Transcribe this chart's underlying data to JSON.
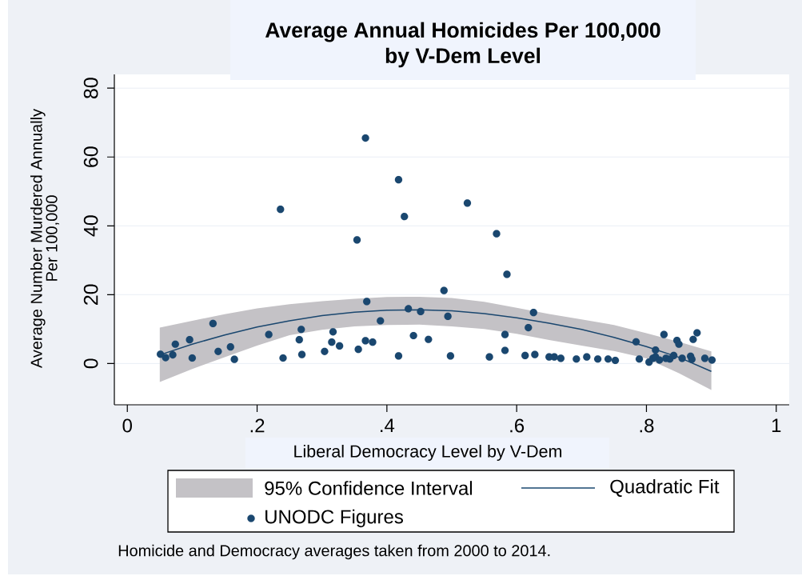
{
  "chart_data": {
    "type": "scatter",
    "title": "Average Annual Homicides Per 100,000 by V-Dem Level",
    "xlabel": "Liberal Democracy Level by V-Dem",
    "ylabel": "Average Number Murdered Annually Per 100,000",
    "xlim": [
      -0.02,
      1.02
    ],
    "ylim": [
      -12,
      84
    ],
    "xticks": [
      0,
      {
        "value": 0.2,
        "label": ".2"
      },
      {
        "value": 0.4,
        "label": ".4"
      },
      {
        "value": 0.6,
        "label": ".6"
      },
      {
        "value": 0.8,
        "label": ".8"
      },
      1
    ],
    "yticks": [
      0,
      20,
      40,
      60,
      80
    ],
    "grid": "y",
    "legend": "bottom",
    "annotations": [
      "95% Confidence Interval",
      "Homicide and Democracy averages taken from 2000 to 2014."
    ],
    "series": [
      {
        "name": "Quadratic Fit",
        "type": "line",
        "color": "#1a476f",
        "x": [
          0.05,
          0.1,
          0.15,
          0.2,
          0.25,
          0.3,
          0.35,
          0.4,
          0.45,
          0.5,
          0.55,
          0.6,
          0.65,
          0.7,
          0.75,
          0.8,
          0.85,
          0.9
        ],
        "values": [
          2.5,
          5.6,
          8.3,
          10.6,
          12.4,
          13.9,
          14.9,
          15.5,
          15.6,
          15.3,
          14.5,
          13.3,
          11.7,
          9.9,
          7.6,
          4.9,
          1.8,
          -2.3
        ],
        "lower": [
          -5.4,
          -1.6,
          1.8,
          5.2,
          8.2,
          9.8,
          10.8,
          11.2,
          11.3,
          10.8,
          10.0,
          8.6,
          6.8,
          5.2,
          3.6,
          1.5,
          -2.8,
          -7.7
        ],
        "upper": [
          10.4,
          12.4,
          14.3,
          16.0,
          17.2,
          18.1,
          18.8,
          19.3,
          19.4,
          19.0,
          17.9,
          16.2,
          14.4,
          12.8,
          11.2,
          8.8,
          6.3,
          3.5
        ]
      },
      {
        "name": "UNODC Figures",
        "color": "#1a476f",
        "marker": "circle",
        "x": [
          0.051,
          0.059,
          0.07,
          0.074,
          0.096,
          0.1,
          0.132,
          0.14,
          0.159,
          0.165,
          0.218,
          0.236,
          0.24,
          0.265,
          0.268,
          0.269,
          0.304,
          0.315,
          0.317,
          0.327,
          0.354,
          0.356,
          0.367,
          0.367,
          0.369,
          0.378,
          0.39,
          0.418,
          0.418,
          0.427,
          0.433,
          0.441,
          0.452,
          0.464,
          0.488,
          0.494,
          0.498,
          0.524,
          0.558,
          0.569,
          0.582,
          0.582,
          0.585,
          0.613,
          0.618,
          0.626,
          0.628,
          0.65,
          0.658,
          0.668,
          0.692,
          0.708,
          0.725,
          0.741,
          0.752,
          0.784,
          0.789,
          0.804,
          0.81,
          0.814,
          0.814,
          0.82,
          0.827,
          0.83,
          0.836,
          0.842,
          0.847,
          0.85,
          0.855,
          0.868,
          0.87,
          0.872,
          0.878,
          0.89,
          0.901
        ],
        "values": [
          2.7,
          1.7,
          2.5,
          5.6,
          6.9,
          1.6,
          11.6,
          3.5,
          4.8,
          1.2,
          8.4,
          44.8,
          1.6,
          6.9,
          9.9,
          2.6,
          3.5,
          6.2,
          9.2,
          5.1,
          35.9,
          4.1,
          65.5,
          6.6,
          18.0,
          6.2,
          12.4,
          53.4,
          2.2,
          42.7,
          15.9,
          8.1,
          15.1,
          7.0,
          21.2,
          13.7,
          2.2,
          46.6,
          1.9,
          37.7,
          8.4,
          3.8,
          25.9,
          2.3,
          10.4,
          14.8,
          2.6,
          1.9,
          1.9,
          1.5,
          1.3,
          1.9,
          1.3,
          1.3,
          0.9,
          6.3,
          1.3,
          0.4,
          1.5,
          3.9,
          1.9,
          1.0,
          8.4,
          1.5,
          1.3,
          2.3,
          6.7,
          5.6,
          1.5,
          2.1,
          1.2,
          7.0,
          8.9,
          1.5,
          1.0
        ]
      }
    ]
  }
}
